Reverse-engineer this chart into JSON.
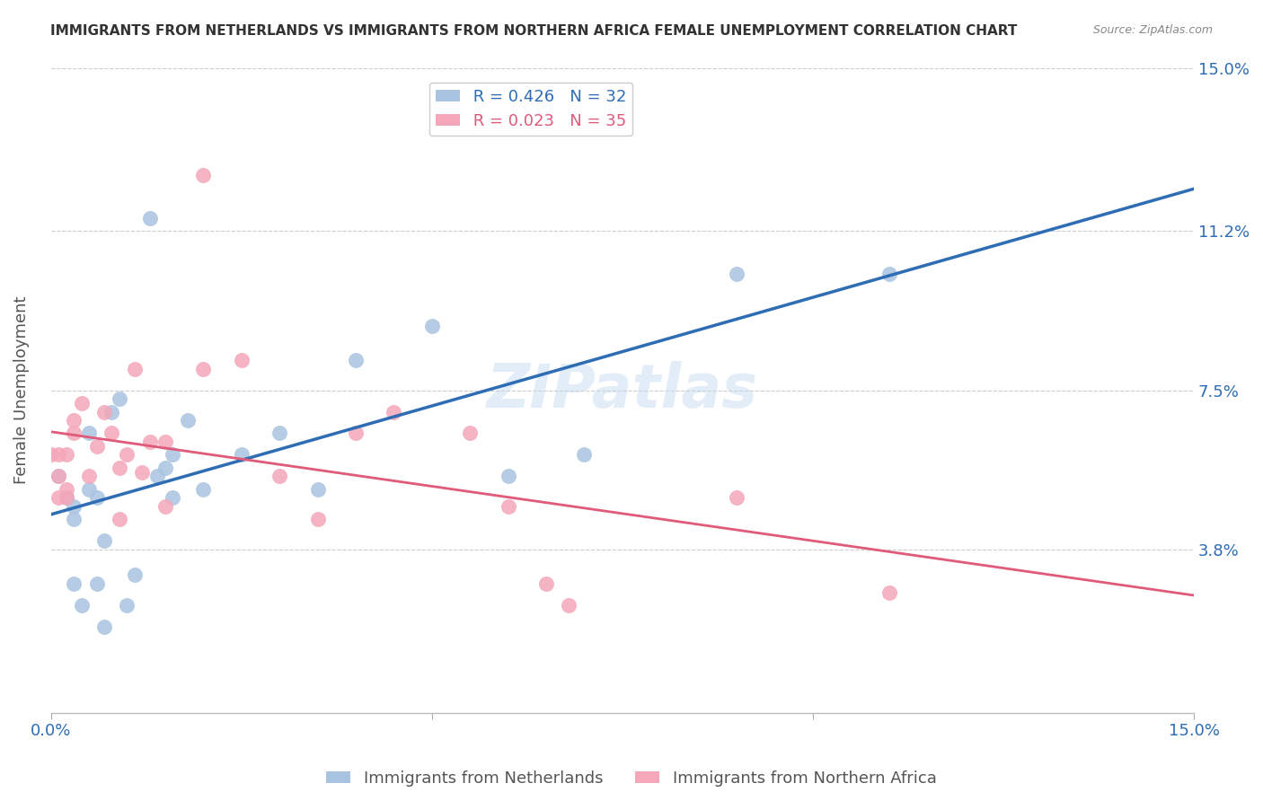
{
  "title": "IMMIGRANTS FROM NETHERLANDS VS IMMIGRANTS FROM NORTHERN AFRICA FEMALE UNEMPLOYMENT CORRELATION CHART",
  "source": "Source: ZipAtlas.com",
  "xlabel_blue": "Immigrants from Netherlands",
  "xlabel_pink": "Immigrants from Northern Africa",
  "ylabel": "Female Unemployment",
  "xlim": [
    0.0,
    0.15
  ],
  "ylim": [
    0.0,
    0.15
  ],
  "ytick_labels": [
    "15.0%",
    "11.2%",
    "7.5%",
    "3.8%"
  ],
  "ytick_values": [
    0.15,
    0.112,
    0.075,
    0.038
  ],
  "blue_R": "0.426",
  "blue_N": "32",
  "pink_R": "0.023",
  "pink_N": "35",
  "blue_color": "#a8c4e0",
  "pink_color": "#f4a7b9",
  "blue_line_color": "#2e6db4",
  "pink_line_color": "#e05a7a",
  "watermark": "ZIPatlas",
  "blue_points_x": [
    0.001,
    0.002,
    0.003,
    0.003,
    0.003,
    0.004,
    0.005,
    0.005,
    0.006,
    0.006,
    0.007,
    0.007,
    0.008,
    0.009,
    0.01,
    0.011,
    0.013,
    0.014,
    0.015,
    0.016,
    0.016,
    0.018,
    0.02,
    0.025,
    0.03,
    0.035,
    0.04,
    0.05,
    0.06,
    0.07,
    0.09,
    0.11
  ],
  "blue_points_y": [
    0.055,
    0.05,
    0.048,
    0.045,
    0.03,
    0.025,
    0.065,
    0.052,
    0.03,
    0.05,
    0.04,
    0.02,
    0.07,
    0.073,
    0.025,
    0.032,
    0.115,
    0.055,
    0.057,
    0.06,
    0.05,
    0.068,
    0.052,
    0.06,
    0.065,
    0.052,
    0.082,
    0.09,
    0.055,
    0.06,
    0.102,
    0.102
  ],
  "pink_points_x": [
    0.0,
    0.001,
    0.001,
    0.001,
    0.002,
    0.002,
    0.002,
    0.003,
    0.003,
    0.004,
    0.005,
    0.006,
    0.007,
    0.008,
    0.009,
    0.009,
    0.01,
    0.011,
    0.012,
    0.013,
    0.015,
    0.015,
    0.02,
    0.02,
    0.025,
    0.03,
    0.035,
    0.04,
    0.045,
    0.055,
    0.06,
    0.065,
    0.068,
    0.09,
    0.11
  ],
  "pink_points_y": [
    0.06,
    0.055,
    0.05,
    0.06,
    0.05,
    0.06,
    0.052,
    0.065,
    0.068,
    0.072,
    0.055,
    0.062,
    0.07,
    0.065,
    0.045,
    0.057,
    0.06,
    0.08,
    0.056,
    0.063,
    0.048,
    0.063,
    0.125,
    0.08,
    0.082,
    0.055,
    0.045,
    0.065,
    0.07,
    0.065,
    0.048,
    0.03,
    0.025,
    0.05,
    0.028
  ],
  "blue_scatter_size": 150,
  "pink_scatter_size": 150,
  "background_color": "#ffffff",
  "grid_color": "#cccccc",
  "title_color": "#333333",
  "axis_label_color": "#555555"
}
